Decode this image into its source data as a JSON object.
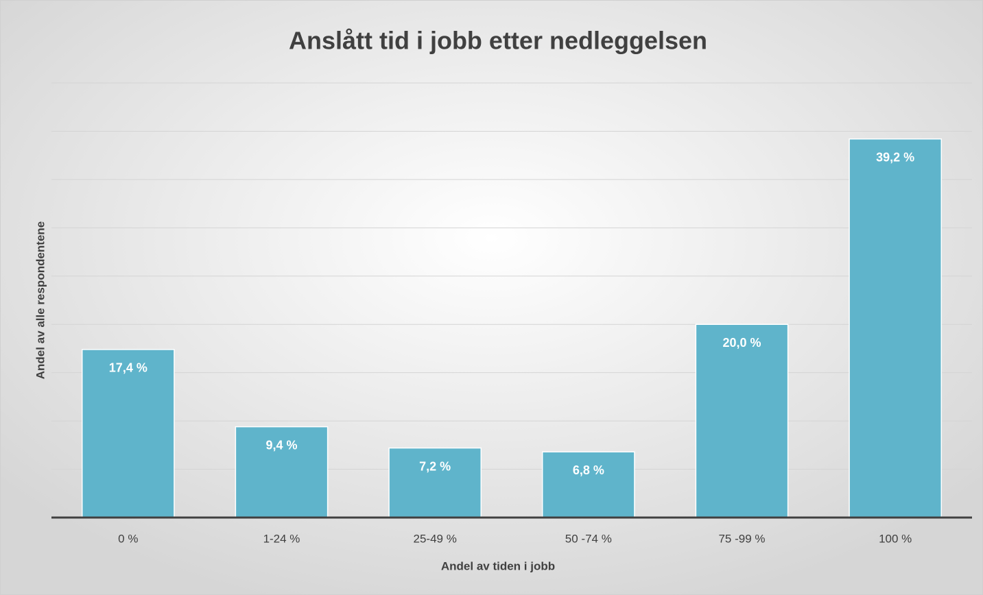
{
  "chart_data": {
    "type": "bar",
    "title": "Anslått tid i jobb etter nedleggelsen",
    "x_label": "Andel av tiden i jobb",
    "y_label": "Andel av alle respondentene",
    "categories": [
      "0 %",
      "1-24 %",
      "25-49 %",
      "50 -74 %",
      "75 -99 %",
      "100 %"
    ],
    "values": [
      17.4,
      9.4,
      7.2,
      6.8,
      20.0,
      39.2
    ],
    "value_labels": [
      "17,4 %",
      "9,4 %",
      "7,2 %",
      "6,8 %",
      "20,0 %",
      "39,2 %"
    ],
    "color": "#5fb4cb",
    "ylim": [
      0,
      45
    ],
    "yticks": [
      0,
      5,
      10,
      15,
      20,
      25,
      30,
      35,
      40,
      45
    ],
    "grid": true
  }
}
